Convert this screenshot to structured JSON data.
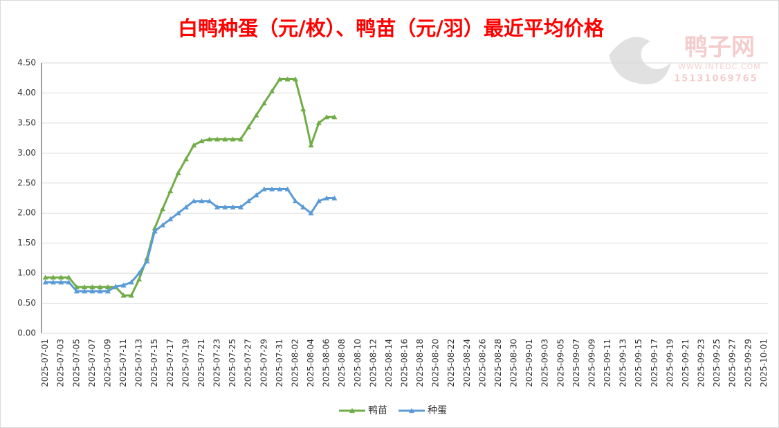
{
  "chart_data": {
    "type": "line",
    "title": "白鸭种蛋（元/枚）、鸭苗（元/羽）最近平均价格",
    "watermark": [
      "鸭子网",
      "WWW.INTEDC.COM",
      "15131069765"
    ],
    "categories": [
      "2025-07-01",
      null,
      "2025-07-03",
      null,
      "2025-07-05",
      null,
      "2025-07-07",
      null,
      "2025-07-09",
      null,
      "2025-07-11",
      null,
      "2025-07-13",
      null,
      "2025-07-15",
      null,
      "2025-07-17",
      null,
      "2025-07-19",
      null,
      "2025-07-21",
      null,
      "2025-07-23",
      null,
      "2025-07-25",
      null,
      "2025-07-27",
      null,
      "2025-07-29",
      null,
      "2025-07-31",
      null,
      "2025-08-02",
      null,
      "2025-08-04",
      null,
      "2025-08-06",
      null,
      "2025-08-08",
      null,
      "2025-08-10",
      null,
      "2025-08-12",
      null,
      "2025-08-14",
      null,
      "2025-08-16",
      null,
      "2025-08-18",
      null,
      "2025-08-20",
      null,
      "2025-08-22",
      null,
      "2025-08-24",
      null,
      "2025-08-26",
      null,
      "2025-08-28",
      null,
      "2025-08-30",
      null,
      "2025-09-01",
      null,
      "2025-09-03",
      null,
      "2025-09-05",
      null,
      "2025-09-07",
      null,
      "2025-09-09",
      null,
      "2025-09-11",
      null,
      "2025-09-13",
      null,
      "2025-09-15",
      null,
      "2025-09-17",
      null,
      "2025-09-19",
      null,
      "2025-09-21",
      null,
      "2025-09-23",
      null,
      "2025-09-25",
      null,
      "2025-09-27",
      null,
      "2025-09-29",
      null,
      "2025-10-01"
    ],
    "series": [
      {
        "name": "鸭苗",
        "color": "#70ad47",
        "values": [
          0.93,
          0.93,
          0.93,
          0.93,
          0.77,
          0.77,
          0.77,
          0.77,
          0.77,
          0.77,
          0.63,
          0.63,
          0.9,
          1.25,
          1.75,
          2.07,
          2.37,
          2.67,
          2.9,
          3.13,
          3.2,
          3.23,
          3.23,
          3.23,
          3.23,
          3.23,
          3.43,
          3.63,
          3.83,
          4.03,
          4.23,
          4.23,
          4.23,
          3.73,
          3.13,
          3.5,
          3.6,
          3.6,
          null,
          null,
          null,
          null,
          null,
          null,
          null,
          null,
          null,
          null,
          null,
          null,
          null,
          null,
          null,
          null,
          null,
          null,
          null,
          null,
          null,
          null,
          null,
          null,
          null,
          null,
          null,
          null,
          null,
          null,
          null,
          null,
          null,
          null,
          null,
          null,
          null,
          null,
          null,
          null,
          null,
          null,
          null,
          null,
          null,
          null,
          null,
          null,
          null,
          null,
          null,
          null,
          null,
          null,
          null
        ]
      },
      {
        "name": "种蛋",
        "color": "#5b9bd5",
        "values": [
          0.85,
          0.85,
          0.85,
          0.85,
          0.7,
          0.7,
          0.7,
          0.7,
          0.7,
          0.78,
          0.8,
          0.85,
          1.0,
          1.2,
          1.7,
          1.8,
          1.9,
          2.0,
          2.1,
          2.2,
          2.2,
          2.2,
          2.1,
          2.1,
          2.1,
          2.1,
          2.2,
          2.3,
          2.4,
          2.4,
          2.4,
          2.4,
          2.2,
          2.1,
          2.0,
          2.2,
          2.25,
          2.25,
          null,
          null,
          null,
          null,
          null,
          null,
          null,
          null,
          null,
          null,
          null,
          null,
          null,
          null,
          null,
          null,
          null,
          null,
          null,
          null,
          null,
          null,
          null,
          null,
          null,
          null,
          null,
          null,
          null,
          null,
          null,
          null,
          null,
          null,
          null,
          null,
          null,
          null,
          null,
          null,
          null,
          null,
          null,
          null,
          null,
          null,
          null,
          null,
          null,
          null,
          null,
          null,
          null,
          null,
          null
        ]
      }
    ],
    "ylim": [
      0,
      4.5
    ],
    "yticks": [
      {
        "value": 0,
        "label": "0.00"
      },
      {
        "value": 0.5,
        "label": "0.50"
      },
      {
        "value": 1,
        "label": "1.00"
      },
      {
        "value": 1.5,
        "label": "1.50"
      },
      {
        "value": 2,
        "label": "2.00"
      },
      {
        "value": 2.5,
        "label": "2.50"
      },
      {
        "value": 3,
        "label": "3.00"
      },
      {
        "value": 3.5,
        "label": "3.50"
      },
      {
        "value": 4,
        "label": "4.00"
      },
      {
        "value": 4.5,
        "label": "4.50"
      }
    ],
    "grid": true,
    "legend": "bottom"
  }
}
